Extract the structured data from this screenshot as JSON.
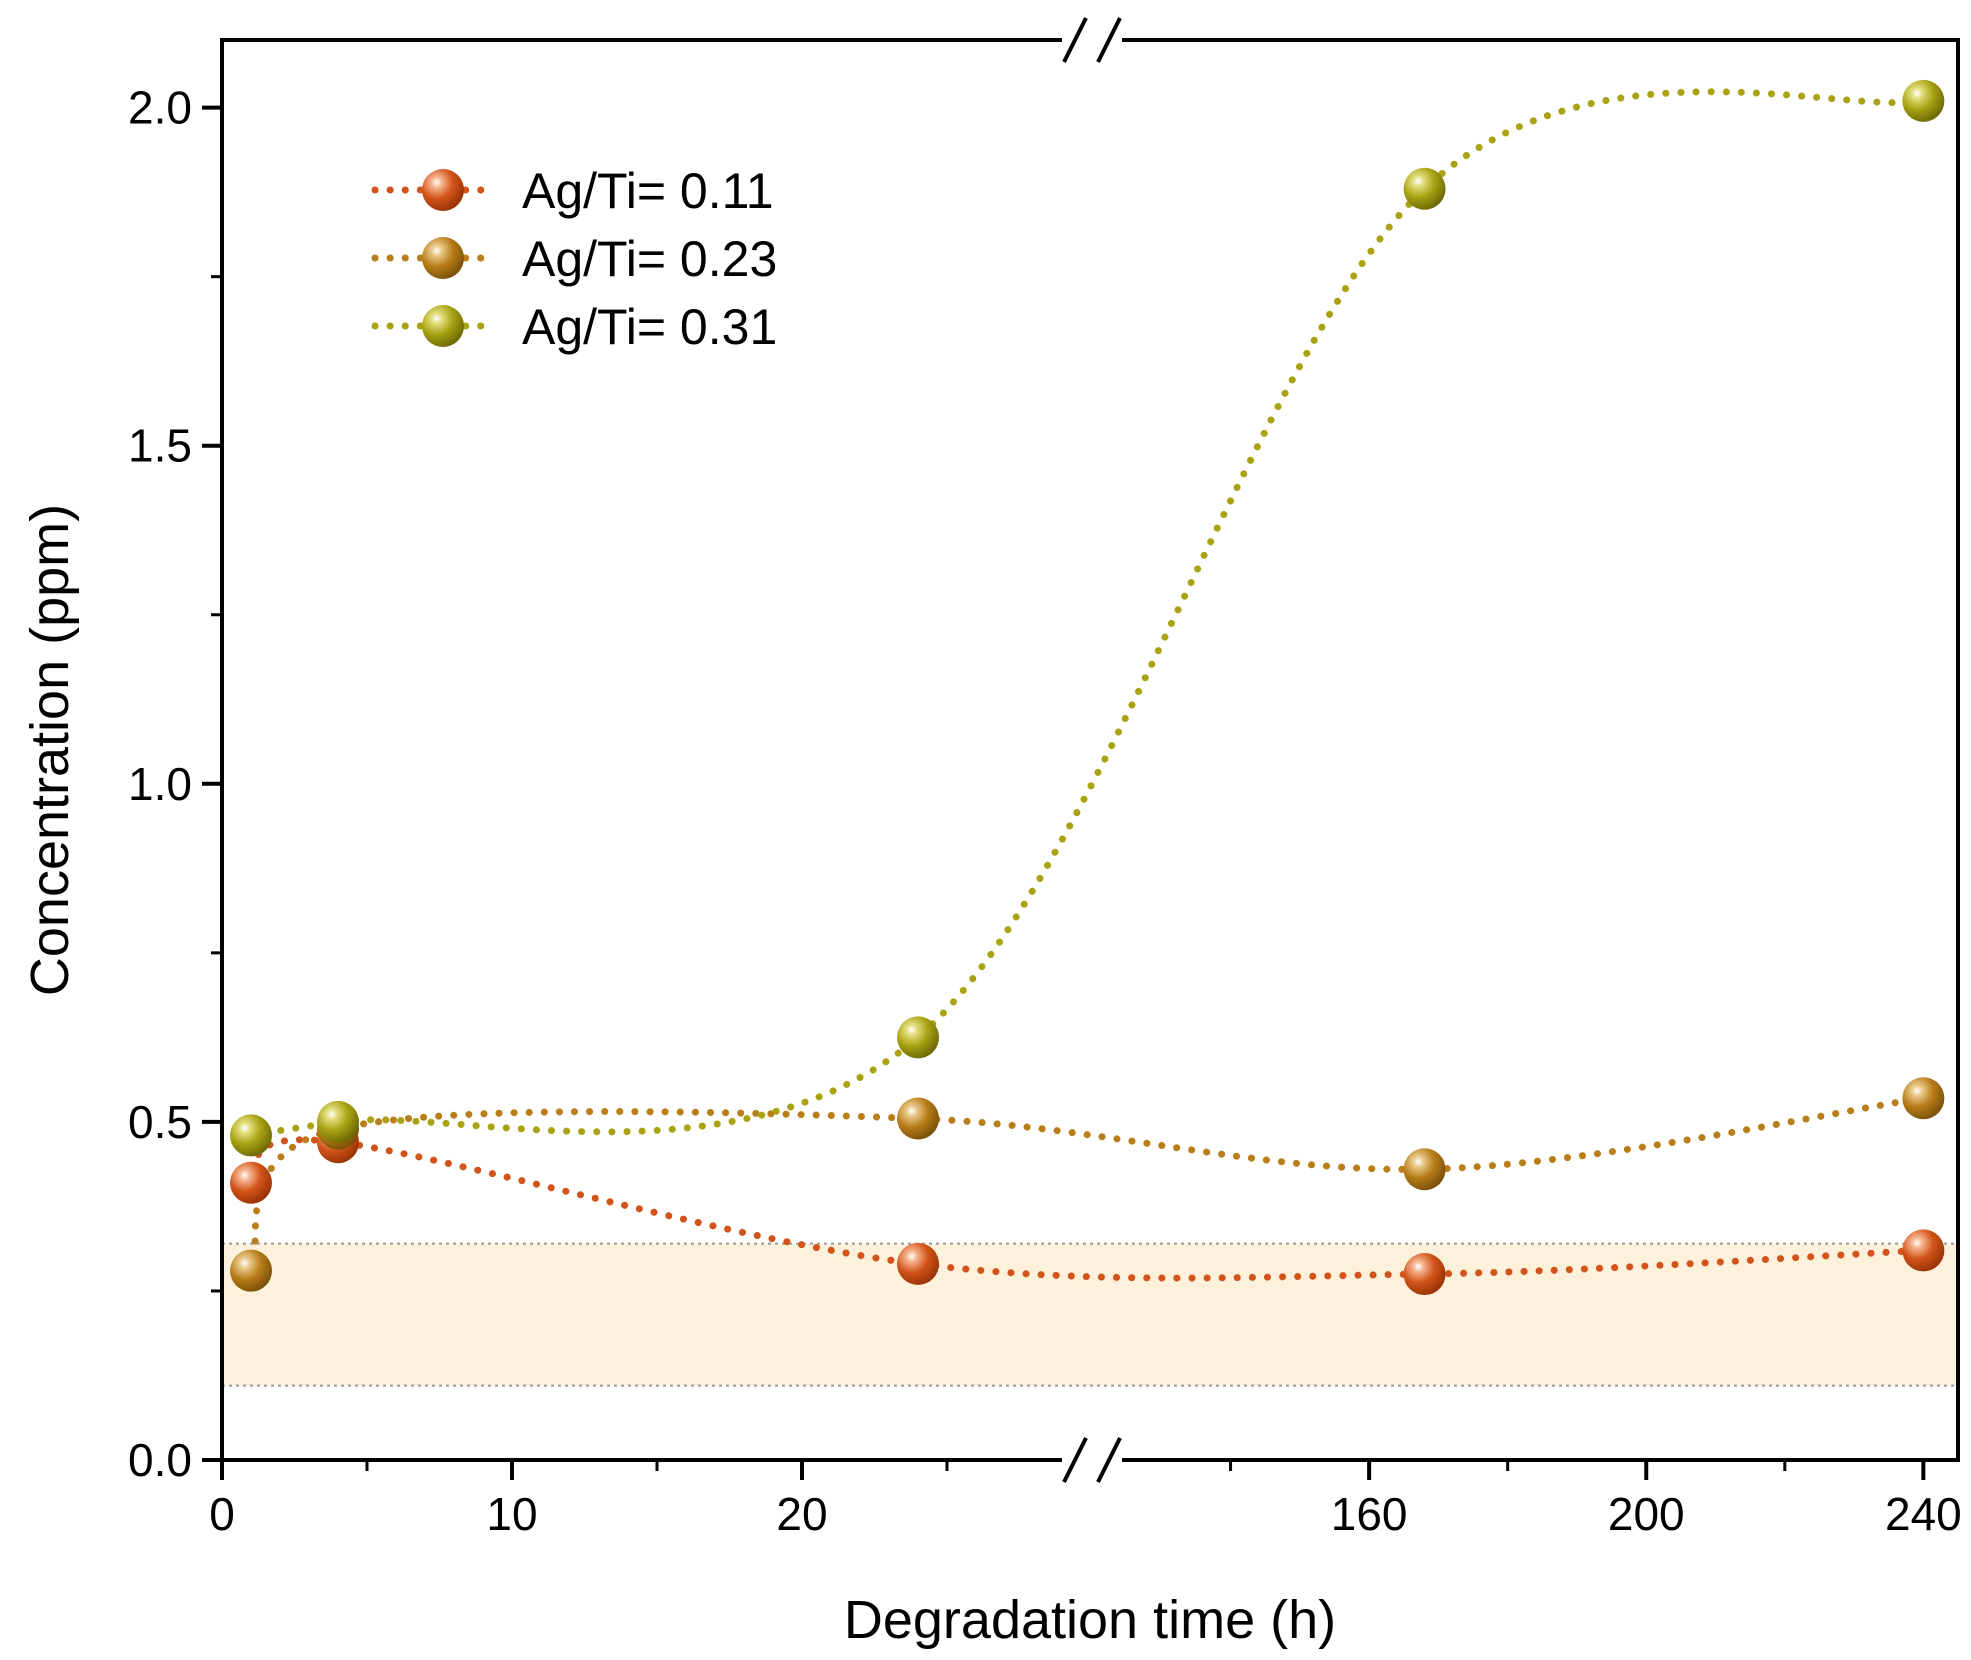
{
  "chart_data": {
    "type": "scatter",
    "xlabel": "Degradation time (h)",
    "ylabel": "Concentration (ppm)",
    "ylim": [
      0,
      2.1
    ],
    "x_axis_segments": [
      {
        "range": [
          0,
          30
        ],
        "ticks": [
          0,
          10,
          20
        ],
        "tick_labels": [
          "0",
          "10",
          "20"
        ],
        "minor_step": 5
      },
      {
        "range": [
          120,
          245
        ],
        "ticks": [
          160,
          200,
          240
        ],
        "tick_labels": [
          "160",
          "200",
          "240"
        ],
        "minor_step": 20
      }
    ],
    "y_ticks": [
      0,
      0.5,
      1.0,
      1.5,
      2.0
    ],
    "y_tick_labels": [
      "0.0",
      "0.5",
      "1.0",
      "1.5",
      "2.0"
    ],
    "axis_break": "//",
    "shaded_band": {
      "ymin": 0.11,
      "ymax": 0.32,
      "color": "#fdf1dc"
    },
    "legend_position": "top-left",
    "series": [
      {
        "name": "Ag/Ti= 0.11",
        "color": "#d2541a",
        "x": [
          1,
          4,
          24,
          168,
          240
        ],
        "y": [
          0.41,
          0.47,
          0.29,
          0.275,
          0.31
        ],
        "trend_line": "dotted"
      },
      {
        "name": "Ag/Ti= 0.23",
        "color": "#b97d1a",
        "x": [
          1,
          4,
          24,
          168,
          240
        ],
        "y": [
          0.28,
          0.49,
          0.505,
          0.43,
          0.535
        ],
        "trend_line": "dotted"
      },
      {
        "name": "Ag/Ti= 0.31",
        "color": "#a9a313",
        "x": [
          1,
          4,
          24,
          168,
          240
        ],
        "y": [
          0.48,
          0.5,
          0.625,
          1.88,
          2.01
        ],
        "trend_line": "dotted"
      }
    ]
  }
}
